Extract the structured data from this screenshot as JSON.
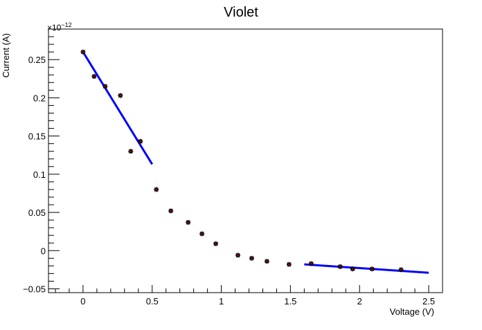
{
  "chart_data": {
    "type": "scatter",
    "title": "Violet",
    "xlabel": "Voltage (V)",
    "ylabel": "Current (A)",
    "y_exponent_label": "×10",
    "y_exponent_power": "−12",
    "xlim": [
      -0.25,
      2.6
    ],
    "ylim": [
      -0.055,
      0.29
    ],
    "x_ticks": [
      0,
      0.5,
      1,
      1.5,
      2,
      2.5
    ],
    "x_tick_labels": [
      "0",
      "0.5",
      "1",
      "1.5",
      "2",
      "2.5"
    ],
    "y_ticks": [
      -0.05,
      0,
      0.05,
      0.1,
      0.15,
      0.2,
      0.25
    ],
    "y_tick_labels": [
      "−0.05",
      "0",
      "0.05",
      "0.1",
      "0.15",
      "0.2",
      "0.25"
    ],
    "points": {
      "x": [
        0.0,
        0.08,
        0.16,
        0.27,
        0.345,
        0.415,
        0.53,
        0.635,
        0.76,
        0.86,
        0.96,
        1.12,
        1.22,
        1.33,
        1.49,
        1.65,
        1.86,
        1.95,
        2.09,
        2.3
      ],
      "y": [
        0.26,
        0.228,
        0.215,
        0.203,
        0.13,
        0.143,
        0.08,
        0.052,
        0.037,
        0.022,
        0.009,
        -0.006,
        -0.01,
        -0.014,
        -0.018,
        -0.017,
        -0.021,
        -0.024,
        -0.024,
        -0.025
      ]
    },
    "fits": [
      {
        "x": [
          0.0,
          0.5
        ],
        "y": [
          0.26,
          0.113
        ]
      },
      {
        "x": [
          1.6,
          2.5
        ],
        "y": [
          -0.018,
          -0.029
        ]
      }
    ],
    "colors": {
      "fit_line": "#0000ff",
      "marker": "#000000",
      "marker_center": "#cc0000"
    },
    "grid": false,
    "legend": "none"
  }
}
